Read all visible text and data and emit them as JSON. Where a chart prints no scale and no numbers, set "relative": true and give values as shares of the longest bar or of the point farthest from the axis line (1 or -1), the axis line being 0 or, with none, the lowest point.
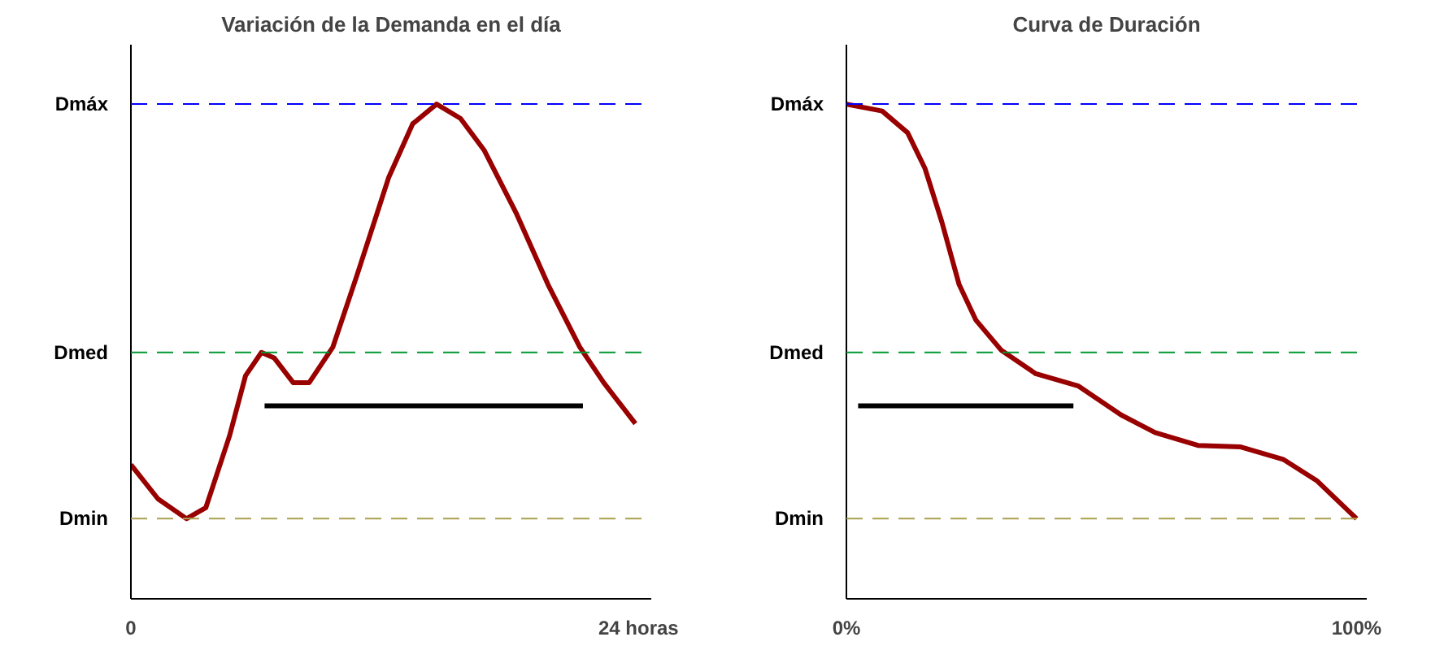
{
  "chart_data": [
    {
      "type": "line",
      "title": "Variación de la Demanda en el día",
      "relative": true,
      "grid": false,
      "tick_labels": "x",
      "xlim": [
        0,
        24.6
      ],
      "xticks": [
        0,
        {
          "value": 24,
          "label": "24 horas"
        }
      ],
      "series": [
        {
          "color": "#990000",
          "x": [
            0,
            1.28,
            2.63,
            3.54,
            4.66,
            5.42,
            6.17,
            6.77,
            7.67,
            8.43,
            9.55,
            10.68,
            12.19,
            13.32,
            14.45,
            15.58,
            16.71,
            18.21,
            19.72,
            21.22,
            22.35,
            23.85
          ],
          "values": [
            0.271,
            0.202,
            0.162,
            0.184,
            0.329,
            0.451,
            0.498,
            0.487,
            0.437,
            0.437,
            0.509,
            0.653,
            0.852,
            0.96,
            1,
            0.971,
            0.906,
            0.78,
            0.635,
            0.509,
            0.437,
            0.354
          ]
        },
        {
          "color": "#000000",
          "x": [
            6.32,
            21.37
          ],
          "values": [
            0.39,
            0.39
          ]
        }
      ],
      "ref_lines": [
        {
          "axis": "y",
          "value": 1,
          "label": "Dmáx",
          "color": "#0000ff",
          "line_style": "dashed"
        },
        {
          "axis": "y",
          "value": 0.498,
          "label": "Dmed",
          "color": "#009933",
          "line_style": "dashed"
        },
        {
          "axis": "y",
          "value": 0.162,
          "label": "Dmin",
          "color": "#aaa050",
          "line_style": "dashed"
        }
      ]
    },
    {
      "type": "line",
      "title": "Curva de Duración",
      "relative": true,
      "grid": false,
      "tick_labels": "x",
      "xlim": [
        0,
        102
      ],
      "xticks": [
        {
          "value": 0,
          "label": "0%"
        },
        {
          "value": 100,
          "label": "100%"
        }
      ],
      "series": [
        {
          "color": "#990000",
          "x": [
            0,
            7,
            12,
            15.4,
            18.7,
            22.1,
            25.4,
            30.4,
            37.1,
            45.5,
            53.8,
            60.5,
            68.9,
            77.3,
            85.6,
            92.3,
            100
          ],
          "values": [
            1,
            0.986,
            0.942,
            0.87,
            0.762,
            0.635,
            0.563,
            0.502,
            0.455,
            0.43,
            0.372,
            0.336,
            0.31,
            0.307,
            0.282,
            0.238,
            0.162
          ]
        },
        {
          "color": "#000000",
          "x": [
            2.3,
            44.5
          ],
          "values": [
            0.39,
            0.39
          ]
        }
      ],
      "ref_lines": [
        {
          "axis": "y",
          "value": 1,
          "label": "Dmáx",
          "color": "#0000ff",
          "line_style": "dashed"
        },
        {
          "axis": "y",
          "value": 0.498,
          "label": "Dmed",
          "color": "#009933",
          "line_style": "dashed"
        },
        {
          "axis": "y",
          "value": 0.162,
          "label": "Dmin",
          "color": "#aaa050",
          "line_style": "dashed"
        }
      ]
    }
  ]
}
